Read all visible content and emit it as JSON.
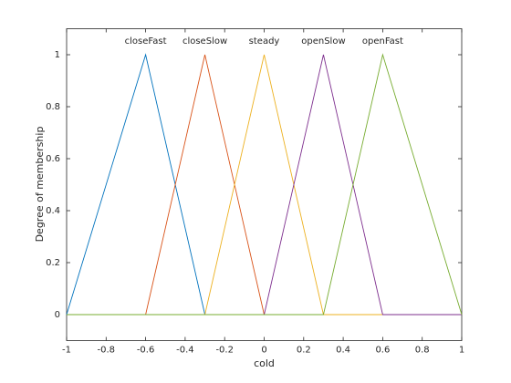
{
  "chart_data": {
    "type": "line",
    "x_label": "cold",
    "y_label": "Degree of membership",
    "xlim": [
      -1,
      1
    ],
    "ylim": [
      -0.1,
      1.1
    ],
    "xticks": [
      -1,
      -0.8,
      -0.6,
      -0.4,
      -0.2,
      0,
      0.2,
      0.4,
      0.6,
      0.8,
      1
    ],
    "yticks": [
      0,
      0.2,
      0.4,
      0.6,
      0.8,
      1
    ],
    "grid": false,
    "series": [
      {
        "name": "closeFast",
        "color": "#0072bd",
        "x": [
          -1,
          -0.6,
          -0.3,
          1
        ],
        "values": [
          0,
          1,
          0,
          0
        ]
      },
      {
        "name": "closeSlow",
        "color": "#d95319",
        "x": [
          -1,
          -0.6,
          -0.3,
          0,
          1
        ],
        "values": [
          0,
          0,
          1,
          0,
          0
        ]
      },
      {
        "name": "steady",
        "color": "#edb120",
        "x": [
          -1,
          -0.3,
          0,
          0.3,
          1
        ],
        "values": [
          0,
          0,
          1,
          0,
          0
        ]
      },
      {
        "name": "openSlow",
        "color": "#7e2f8e",
        "x": [
          -1,
          0,
          0.3,
          0.6,
          1
        ],
        "values": [
          0,
          0,
          1,
          0,
          0
        ]
      },
      {
        "name": "openFast",
        "color": "#77ac30",
        "x": [
          -1,
          0.3,
          0.6,
          1
        ],
        "values": [
          0,
          0,
          1,
          0
        ]
      }
    ]
  }
}
